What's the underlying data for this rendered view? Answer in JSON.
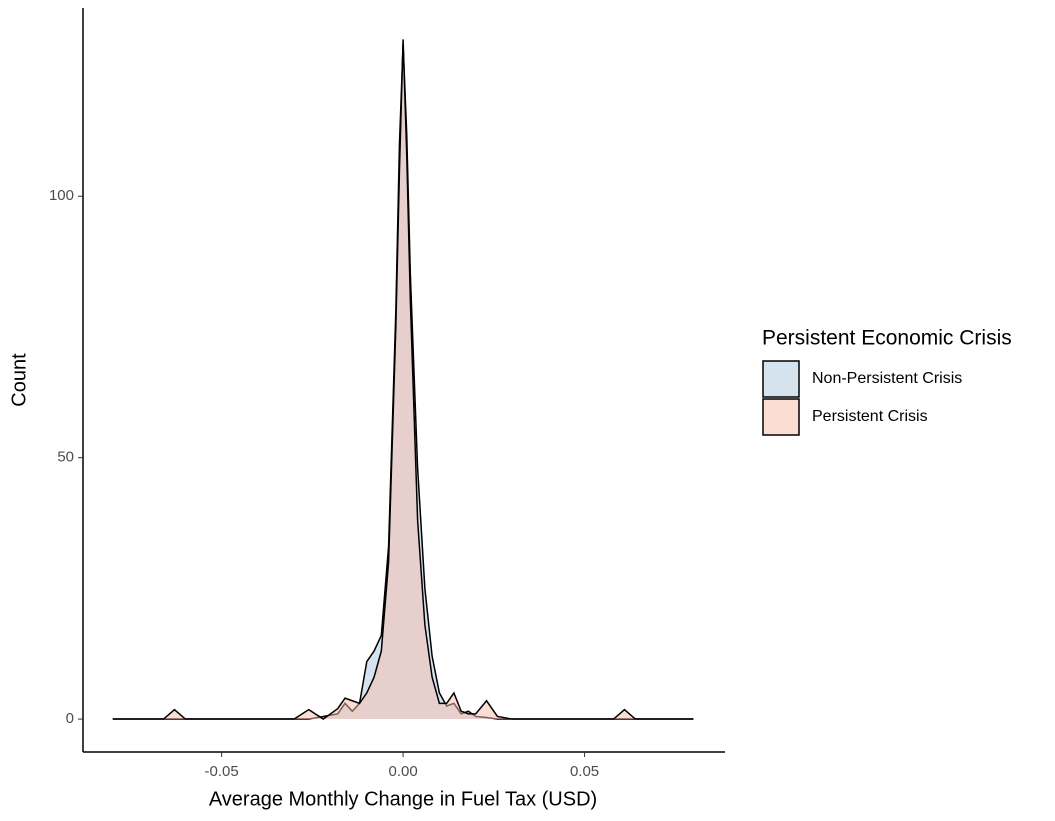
{
  "chart_data": {
    "type": "density",
    "x_label": "Average Monthly Change in Fuel Tax (USD)",
    "y_label": "Count",
    "legend_title": "Persistent Economic Crisis",
    "legend_position": "right",
    "x": [
      -0.08,
      -0.066,
      -0.063,
      -0.06,
      -0.03,
      -0.026,
      -0.022,
      -0.018,
      -0.016,
      -0.014,
      -0.012,
      -0.01,
      -0.008,
      -0.006,
      -0.004,
      -0.002,
      -0.001,
      0,
      0.001,
      0.002,
      0.004,
      0.006,
      0.008,
      0.01,
      0.012,
      0.014,
      0.016,
      0.018,
      0.02,
      0.023,
      0.026,
      0.03,
      0.058,
      0.061,
      0.064,
      0.08
    ],
    "series": [
      {
        "name": "Non-Persistent Crisis",
        "color": "#a9c7de",
        "values": [
          0,
          0,
          0,
          0,
          0,
          0,
          0.5,
          1,
          3,
          1.5,
          3,
          11,
          13,
          16,
          33,
          78,
          110,
          129,
          112,
          85,
          48,
          25,
          12,
          5,
          2.5,
          3,
          1,
          1.5,
          0.5,
          0.3,
          0,
          0,
          0,
          0,
          0,
          0
        ]
      },
      {
        "name": "Persistent Crisis",
        "color": "#f7bca9",
        "values": [
          0,
          0,
          1.8,
          0,
          0,
          1.8,
          0,
          2,
          4,
          3.5,
          3,
          5,
          8,
          13,
          30,
          75,
          105,
          130,
          108,
          80,
          38,
          18,
          8,
          3,
          3,
          5,
          1.5,
          1,
          1,
          3.5,
          0.5,
          0,
          0,
          1.8,
          0,
          0
        ]
      }
    ],
    "xlim": [
      -0.0882,
      0.0887
    ],
    "ylim": [
      -6.3,
      136
    ],
    "xticks": [
      -0.05,
      {
        "value": 0,
        "label": "0.00"
      },
      0.05
    ],
    "yticks": [
      0,
      50,
      100
    ],
    "fill_opacity": 0.5,
    "grid": false
  }
}
